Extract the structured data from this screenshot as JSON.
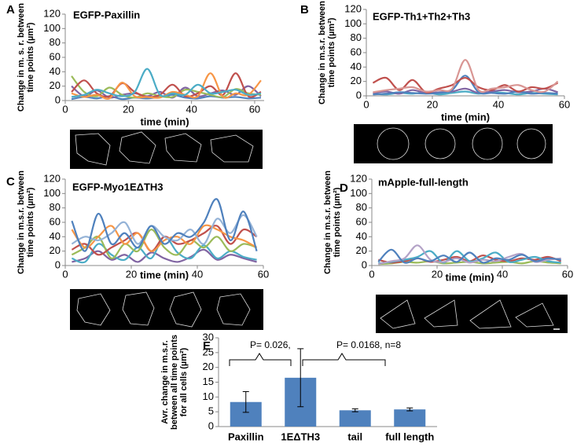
{
  "chart_data": [
    {
      "type": "line",
      "label": "A",
      "title": "EGFP-Paxillin",
      "xlabel": "time (min)",
      "ylabel": [
        "Change in m. s. r. between",
        "time points (µm²)"
      ],
      "x": [
        2,
        6,
        10,
        14,
        18,
        22,
        26,
        30,
        34,
        38,
        42,
        46,
        50,
        54,
        58,
        62
      ],
      "xlim": [
        0,
        63
      ],
      "xticks": [
        0,
        20,
        40,
        60
      ],
      "ylim": [
        0,
        120
      ],
      "yticks": [
        0,
        20,
        40,
        60,
        80,
        100,
        120
      ],
      "series": [
        {
          "color": "#4f81bd",
          "values": [
            2,
            5,
            3,
            6,
            2,
            4,
            3,
            5,
            8,
            4,
            3,
            6,
            4,
            5,
            3,
            4
          ]
        },
        {
          "color": "#8064a2",
          "values": [
            20,
            6,
            14,
            4,
            8,
            10,
            6,
            12,
            4,
            18,
            6,
            10,
            14,
            8,
            20,
            6
          ]
        },
        {
          "color": "#9bbb59",
          "values": [
            34,
            12,
            6,
            18,
            8,
            4,
            10,
            6,
            5,
            15,
            12,
            8,
            5,
            16,
            10,
            8
          ]
        },
        {
          "color": "#c0504d",
          "values": [
            12,
            28,
            10,
            6,
            24,
            12,
            5,
            8,
            22,
            6,
            10,
            20,
            8,
            38,
            6,
            12
          ]
        },
        {
          "color": "#f79646",
          "values": [
            10,
            5,
            8,
            3,
            25,
            6,
            5,
            4,
            12,
            8,
            6,
            38,
            5,
            10,
            8,
            28
          ]
        },
        {
          "color": "#4bacc6",
          "values": [
            5,
            8,
            15,
            10,
            6,
            12,
            44,
            8,
            10,
            8,
            22,
            10,
            12,
            15,
            8,
            10
          ]
        }
      ]
    },
    {
      "type": "line",
      "label": "B",
      "title": "EGFP-Th1+Th2+Th3",
      "xlabel": "time (min)",
      "ylabel": [
        "Change in m.s.r. between",
        "time points (µm²)"
      ],
      "x": [
        2,
        6,
        10,
        14,
        18,
        22,
        26,
        30,
        34,
        38,
        42,
        46,
        50,
        54,
        58
      ],
      "xlim": [
        0,
        60
      ],
      "xticks": [
        0,
        20,
        40,
        60
      ],
      "ylim": [
        0,
        120
      ],
      "yticks": [
        0,
        20,
        40,
        60,
        80,
        100,
        120
      ],
      "series": [
        {
          "color": "#4bacc6",
          "values": [
            3,
            2,
            4,
            3,
            5,
            2,
            4,
            6,
            3,
            5,
            4,
            2,
            4,
            3,
            2
          ]
        },
        {
          "color": "#8064a2",
          "values": [
            4,
            6,
            3,
            8,
            4,
            5,
            6,
            10,
            4,
            6,
            8,
            5,
            6,
            10,
            5
          ]
        },
        {
          "color": "#4f81bd",
          "values": [
            2,
            3,
            5,
            4,
            3,
            4,
            8,
            28,
            5,
            4,
            3,
            6,
            3,
            4,
            3
          ]
        },
        {
          "color": "#c0504d",
          "values": [
            18,
            25,
            8,
            22,
            5,
            10,
            15,
            25,
            12,
            8,
            15,
            6,
            12,
            10,
            18
          ]
        },
        {
          "color": "#d99694",
          "values": [
            5,
            8,
            10,
            12,
            6,
            8,
            10,
            50,
            8,
            10,
            12,
            15,
            8,
            6,
            20
          ]
        }
      ]
    },
    {
      "type": "line",
      "label": "C",
      "title": "EGFP-Myo1EΔTH3",
      "xlabel": "time (min)",
      "ylabel": [
        "Change in m.s.r. between",
        "time points (µm²)"
      ],
      "x": [
        2,
        6,
        10,
        14,
        18,
        22,
        26,
        30,
        34,
        38,
        42,
        46,
        50,
        54,
        58
      ],
      "xlim": [
        0,
        60
      ],
      "xticks": [
        0,
        20,
        40,
        60
      ],
      "ylim": [
        0,
        120
      ],
      "yticks": [
        0,
        20,
        40,
        60,
        80,
        100,
        120
      ],
      "series": [
        {
          "color": "#8064a2",
          "values": [
            5,
            10,
            20,
            8,
            15,
            5,
            18,
            10,
            5,
            12,
            22,
            8,
            15,
            10,
            5
          ]
        },
        {
          "color": "#4bacc6",
          "values": [
            10,
            5,
            30,
            15,
            8,
            25,
            10,
            40,
            18,
            10,
            28,
            10,
            20,
            12,
            8
          ]
        },
        {
          "color": "#9bbb59",
          "values": [
            15,
            25,
            40,
            10,
            30,
            20,
            50,
            25,
            15,
            35,
            25,
            40,
            20,
            30,
            25
          ]
        },
        {
          "color": "#c0504d",
          "values": [
            22,
            30,
            15,
            25,
            35,
            45,
            20,
            40,
            30,
            35,
            45,
            55,
            30,
            50,
            40
          ]
        },
        {
          "color": "#f79646",
          "values": [
            50,
            25,
            40,
            55,
            30,
            45,
            20,
            35,
            40,
            30,
            55,
            50,
            40,
            35,
            25
          ]
        },
        {
          "color": "#95b3d7",
          "values": [
            30,
            40,
            35,
            45,
            60,
            30,
            55,
            40,
            35,
            50,
            30,
            65,
            45,
            70,
            40
          ]
        },
        {
          "color": "#4f81bd",
          "values": [
            62,
            20,
            72,
            30,
            45,
            25,
            55,
            30,
            45,
            40,
            60,
            92,
            35,
            75,
            20
          ]
        }
      ]
    },
    {
      "type": "line",
      "label": "D",
      "title": "mApple-full-length",
      "xlabel": "time (min)",
      "ylabel": [
        "Change in m.s.r. between",
        "time points (µm²)"
      ],
      "x": [
        2,
        6,
        10,
        14,
        18,
        22,
        26,
        30,
        34,
        38,
        42,
        46,
        50,
        54,
        58
      ],
      "xlim": [
        0,
        60
      ],
      "xticks": [
        0,
        20,
        40,
        60
      ],
      "ylim": [
        0,
        120
      ],
      "yticks": [
        0,
        20,
        40,
        60,
        80,
        100,
        120
      ],
      "series": [
        {
          "color": "#9bbb59",
          "values": [
            2,
            3,
            5,
            4,
            6,
            3,
            4,
            5,
            3,
            4,
            5,
            3,
            6,
            4,
            3
          ]
        },
        {
          "color": "#c0504d",
          "values": [
            8,
            4,
            6,
            10,
            5,
            8,
            12,
            6,
            14,
            8,
            6,
            10,
            8,
            12,
            6
          ]
        },
        {
          "color": "#4bacc6",
          "values": [
            3,
            5,
            8,
            12,
            20,
            4,
            20,
            6,
            10,
            18,
            5,
            8,
            12,
            6,
            4
          ]
        },
        {
          "color": "#b3a2c7",
          "values": [
            2,
            6,
            10,
            28,
            8,
            5,
            10,
            4,
            8,
            6,
            12,
            16,
            5,
            8,
            10
          ]
        },
        {
          "color": "#4f81bd",
          "values": [
            5,
            22,
            4,
            10,
            6,
            14,
            5,
            18,
            4,
            10,
            8,
            15,
            6,
            10,
            8
          ]
        }
      ]
    },
    {
      "type": "bar",
      "label": "E",
      "ylabel": [
        "Avr. change in m.s.r.",
        "between all time points",
        "for all cells (µm²)"
      ],
      "categories": [
        "Paxillin",
        "1EΔTH3",
        "tail",
        "full length"
      ],
      "values": [
        8.3,
        16.5,
        5.5,
        5.8
      ],
      "errors": [
        3.5,
        9.8,
        0.5,
        0.5
      ],
      "color": "#4f81bd",
      "ylim": [
        0,
        30
      ],
      "yticks": [
        0,
        5,
        10,
        15,
        20,
        25,
        30
      ],
      "annotations": [
        "P= 0.026,",
        "P= 0.0168, n=8"
      ]
    }
  ]
}
